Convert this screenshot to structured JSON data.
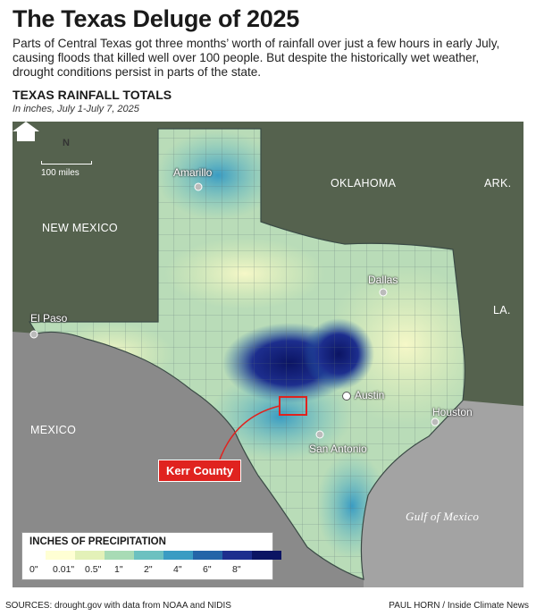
{
  "header": {
    "title": "The Texas Deluge of 2025",
    "description": "Parts of Central Texas got three months’ worth of rainfall over just a few hours in early July, causing floods that killed well over 100 people. But despite the historically wet weather, drought conditions persist in parts of the state."
  },
  "map": {
    "title": "TEXAS RAINFALL TOTALS",
    "subtitle": "In inches, July 1-July 7, 2025",
    "scale_label": "100 miles",
    "compass_label": "N",
    "regions": {
      "new_mexico": "NEW MEXICO",
      "oklahoma": "OKLAHOMA",
      "arkansas": "ARK.",
      "louisiana": "LA.",
      "mexico": "MEXICO",
      "gulf": "Gulf of Mexico"
    },
    "cities": {
      "amarillo": "Amarillo",
      "dallas": "Dallas",
      "el_paso": "El Paso",
      "austin": "Austin",
      "houston": "Houston",
      "san_antonio": "San Antonio"
    },
    "callout": "Kerr County"
  },
  "legend": {
    "title": "INCHES OF PRECIPITATION",
    "ticks": [
      "0\"",
      "0.01\"",
      "0.5\"",
      "1\"",
      "2\"",
      "4\"",
      "6\"",
      "8\""
    ],
    "colors": [
      "#ffffd4",
      "#e3f1b8",
      "#a8dbb5",
      "#6cc1c0",
      "#3a9cc3",
      "#2465a8",
      "#1d2e8e",
      "#0b1463"
    ]
  },
  "footer": {
    "sources": "SOURCES: drought.gov with data from NOAA and NIDIS",
    "credit": "PAUL HORN / Inside Climate News"
  },
  "colors": {
    "land_outside": "#55624e",
    "mexico": "#8a8a8a",
    "gulf": "#a3a3a3",
    "texas_base": "#b9dcb8",
    "heavy_rain": "#1f3b95",
    "callout_red": "#e0231f"
  }
}
